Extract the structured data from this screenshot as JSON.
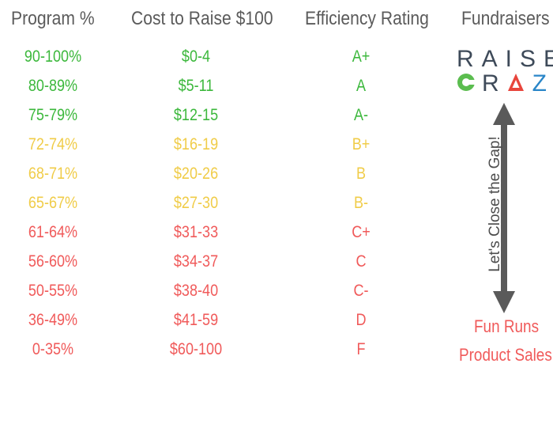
{
  "headers": {
    "program": "Program %",
    "cost": "Cost to Raise $100",
    "rating": "Efficiency Rating",
    "fundraisers": "Fundraisers"
  },
  "rows": [
    {
      "program": "90-100%",
      "cost": "$0-4",
      "rating": "A+",
      "tier": "green"
    },
    {
      "program": "80-89%",
      "cost": "$5-11",
      "rating": "A",
      "tier": "green"
    },
    {
      "program": "75-79%",
      "cost": "$12-15",
      "rating": "A-",
      "tier": "green"
    },
    {
      "program": "72-74%",
      "cost": "$16-19",
      "rating": "B+",
      "tier": "yellow"
    },
    {
      "program": "68-71%",
      "cost": "$20-26",
      "rating": "B",
      "tier": "yellow"
    },
    {
      "program": "65-67%",
      "cost": "$27-30",
      "rating": "B-",
      "tier": "yellow"
    },
    {
      "program": "61-64%",
      "cost": "$31-33",
      "rating": "C+",
      "tier": "red"
    },
    {
      "program": "56-60%",
      "cost": "$34-37",
      "rating": "C",
      "tier": "red"
    },
    {
      "program": "50-55%",
      "cost": "$38-40",
      "rating": "C-",
      "tier": "red"
    },
    {
      "program": "36-49%",
      "cost": "$41-59",
      "rating": "D",
      "tier": "red"
    },
    {
      "program": "0-35%",
      "cost": "$60-100",
      "rating": "F",
      "tier": "red"
    }
  ],
  "logo": {
    "line1": "RAISE",
    "line2": "CRAZE",
    "colors": {
      "text": "#3e4a59",
      "green": "#5bbd4f",
      "red": "#e8453c",
      "blue": "#2a86c8"
    }
  },
  "gap_label": "Let's Close the Gap!",
  "fundraisers": [
    "Fun Runs",
    "Product Sales"
  ],
  "colors": {
    "green": "#3cb83c",
    "yellow": "#f0cc48",
    "red": "#f05a5a",
    "header": "#5b5b5b",
    "arrow": "#5a5a5a"
  }
}
